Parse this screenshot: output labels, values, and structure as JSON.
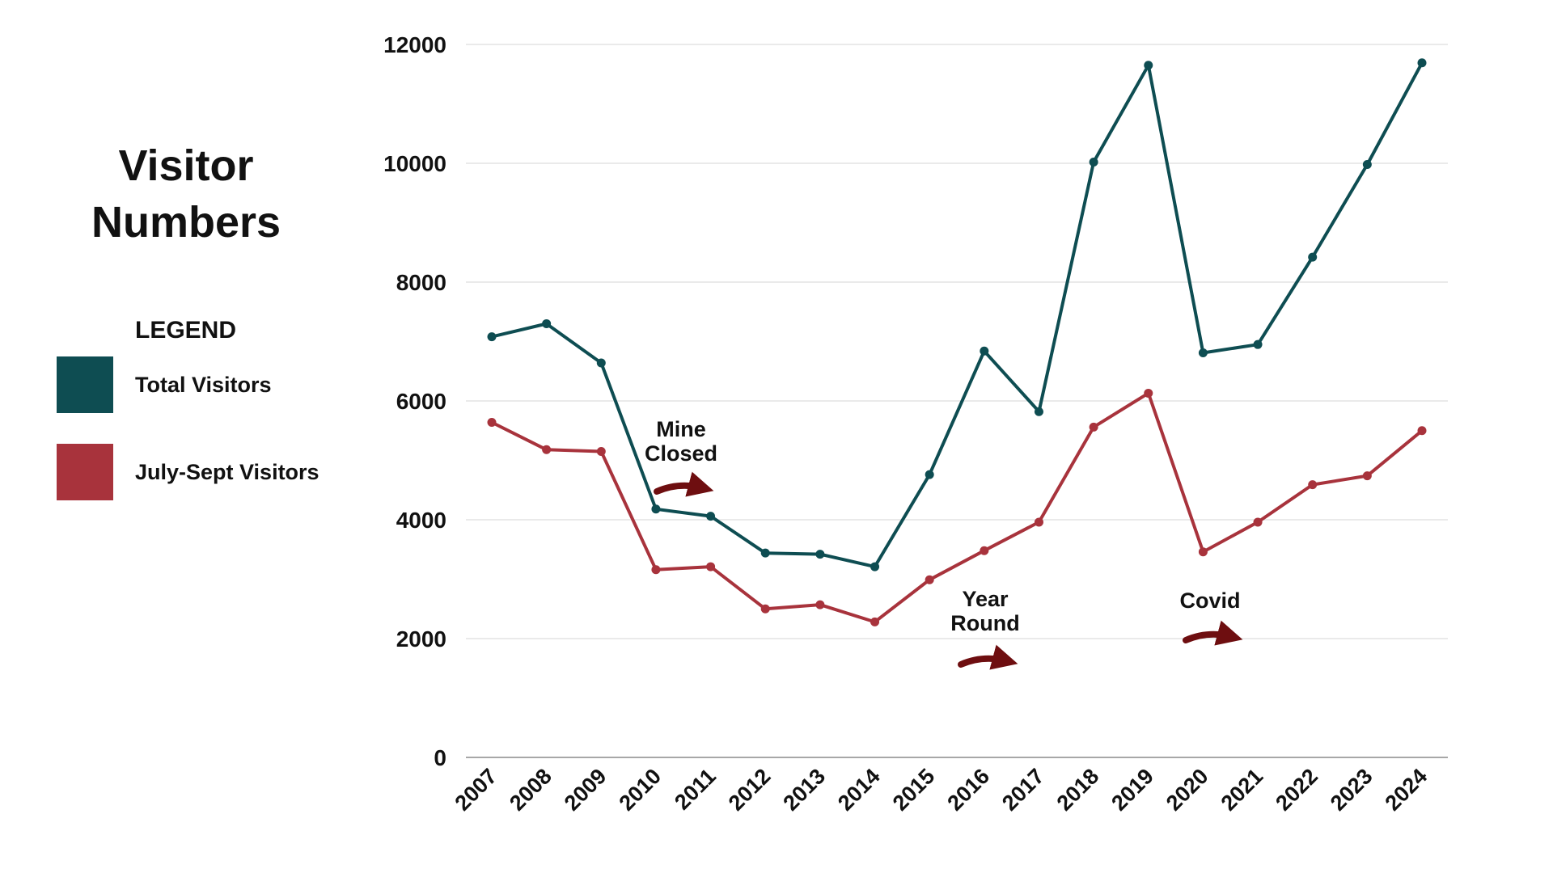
{
  "chart_data": {
    "type": "line",
    "title_lines": [
      "Visitor",
      "Numbers"
    ],
    "legend_heading": "LEGEND",
    "x": [
      "2007",
      "2008",
      "2009",
      "2010",
      "2011",
      "2012",
      "2013",
      "2014",
      "2015",
      "2016",
      "2017",
      "2018",
      "2019",
      "2020",
      "2021",
      "2022",
      "2023",
      "2024"
    ],
    "series": [
      {
        "name": "Total Visitors",
        "color": "#0e4d52",
        "values": [
          7080,
          7300,
          6640,
          4180,
          4060,
          3440,
          3420,
          3210,
          4760,
          6840,
          5820,
          10020,
          11650,
          6810,
          6950,
          8420,
          9980,
          11690
        ]
      },
      {
        "name": "July-Sept Visitors",
        "color": "#a8333c",
        "values": [
          5640,
          5180,
          5150,
          3160,
          3210,
          2500,
          2570,
          2280,
          2990,
          3480,
          3960,
          5560,
          6130,
          3460,
          3960,
          4590,
          4740,
          5500
        ]
      }
    ],
    "ylim": [
      0,
      12000
    ],
    "yticks": [
      0,
      2000,
      4000,
      6000,
      8000,
      10000,
      12000
    ],
    "grid": true,
    "legend_position": "left",
    "annotation_color": "#6e0e10",
    "annotations": [
      {
        "lines": [
          "Mine",
          "Closed"
        ],
        "x": "2010"
      },
      {
        "lines": [
          "Year",
          "Round"
        ],
        "x": "2016"
      },
      {
        "lines": [
          "Covid"
        ],
        "x": "2020"
      }
    ]
  }
}
